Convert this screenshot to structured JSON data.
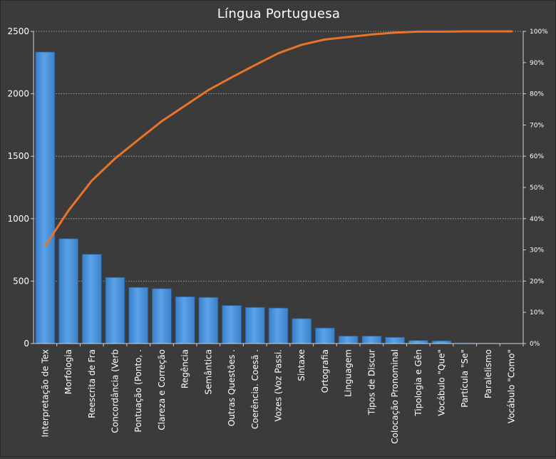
{
  "chart_data": {
    "type": "bar",
    "title": "Língua Portuguesa",
    "categories": [
      "Interpretação de Tex",
      "Morfologia",
      "Reescrita de Fra",
      "Concordância (Verb",
      "Pontuação (Ponto, .",
      "Clareza e Correção",
      "Regência",
      "Semântica",
      "Outras Questões .",
      "Coerência. Coesã .",
      "Vozes (Voz Passi.",
      "Sintaxe",
      "Ortografia",
      "Linguagem",
      "Tipos de Discur",
      "Colocação Pronominal",
      "Tipologia e Gên",
      "Vocábulo \"Que\"",
      "Partícula \"Se\"",
      "Paralelismo",
      "Vocábulo \"Como\""
    ],
    "series": [
      {
        "type": "bar",
        "axis": "left",
        "color": "#4a8fd6",
        "values": [
          2335,
          840,
          715,
          530,
          450,
          440,
          375,
          370,
          305,
          290,
          285,
          200,
          125,
          60,
          60,
          50,
          25,
          22,
          5,
          4,
          3
        ]
      },
      {
        "type": "line",
        "axis": "right",
        "color": "#e8732a",
        "values": [
          31.3,
          42.6,
          52.2,
          59.3,
          65.3,
          71.2,
          76.2,
          81.2,
          85.3,
          89.2,
          93.0,
          95.7,
          97.4,
          98.2,
          99.0,
          99.6,
          99.9,
          99.9,
          100.0,
          100.0,
          100.0
        ]
      }
    ],
    "ylim": [
      0,
      2500
    ],
    "yticks": [
      "0",
      "500",
      "1000",
      "1500",
      "2000",
      "2500"
    ],
    "y2lim": [
      0,
      100
    ],
    "y2ticks": [
      "0%",
      "10%",
      "20%",
      "30%",
      "40%",
      "50%",
      "60%",
      "70%",
      "80%",
      "90%",
      "100%"
    ],
    "grid": true,
    "legend": "none"
  }
}
